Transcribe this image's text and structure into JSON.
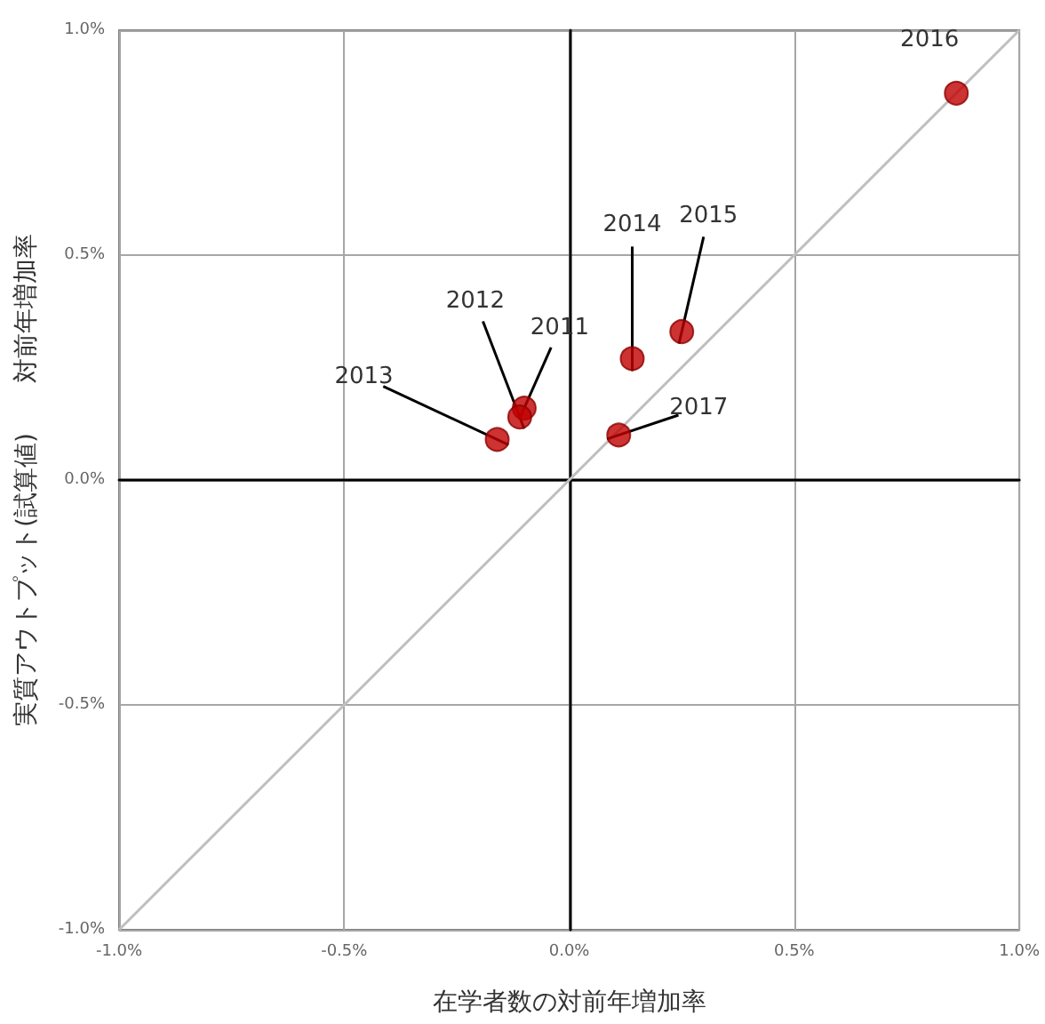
{
  "chart_data": {
    "type": "scatter",
    "xlabel": "在学者数の対前年増加率",
    "ylabel": "実質アウトプット(試算値)　　対前年増加率",
    "series": [
      {
        "color": "#c00000",
        "x": [
          -0.1,
          -0.11,
          -0.16,
          0.14,
          0.25,
          0.86,
          0.11
        ],
        "values": [
          0.16,
          0.14,
          0.09,
          0.27,
          0.33,
          0.86,
          0.1
        ]
      },
      {
        "type": "line",
        "color": "#bfbfbf",
        "x": [
          -1.0,
          1.0
        ],
        "values": [
          -1.0,
          1.0
        ]
      }
    ],
    "annotations": [
      {
        "text": "2011",
        "x": -0.1,
        "y": 0.16
      },
      {
        "text": "2012",
        "x": -0.11,
        "y": 0.14
      },
      {
        "text": "2013",
        "x": -0.16,
        "y": 0.09
      },
      {
        "text": "2014",
        "x": 0.14,
        "y": 0.27
      },
      {
        "text": "2015",
        "x": 0.25,
        "y": 0.33
      },
      {
        "text": "2016",
        "x": 0.86,
        "y": 0.86
      },
      {
        "text": "2017",
        "x": 0.11,
        "y": 0.1
      }
    ],
    "xlim": [
      -1.0,
      1.0
    ],
    "ylim": [
      -1.0,
      1.0
    ],
    "xticks": [
      {
        "value": -1.0,
        "label": "-1.0%"
      },
      {
        "value": -0.5,
        "label": "-0.5%"
      },
      {
        "value": 0,
        "label": "0.0%"
      },
      {
        "value": 0.5,
        "label": "0.5%"
      },
      {
        "value": 1.0,
        "label": "1.0%"
      }
    ],
    "yticks": [
      {
        "value": -1.0,
        "label": "-1.0%"
      },
      {
        "value": -0.5,
        "label": "-0.5%"
      },
      {
        "value": 0,
        "label": "0.0%"
      },
      {
        "value": 0.5,
        "label": "0.5%"
      },
      {
        "value": 1.0,
        "label": "1.0%"
      }
    ],
    "grid": true,
    "line_style": "solid"
  }
}
